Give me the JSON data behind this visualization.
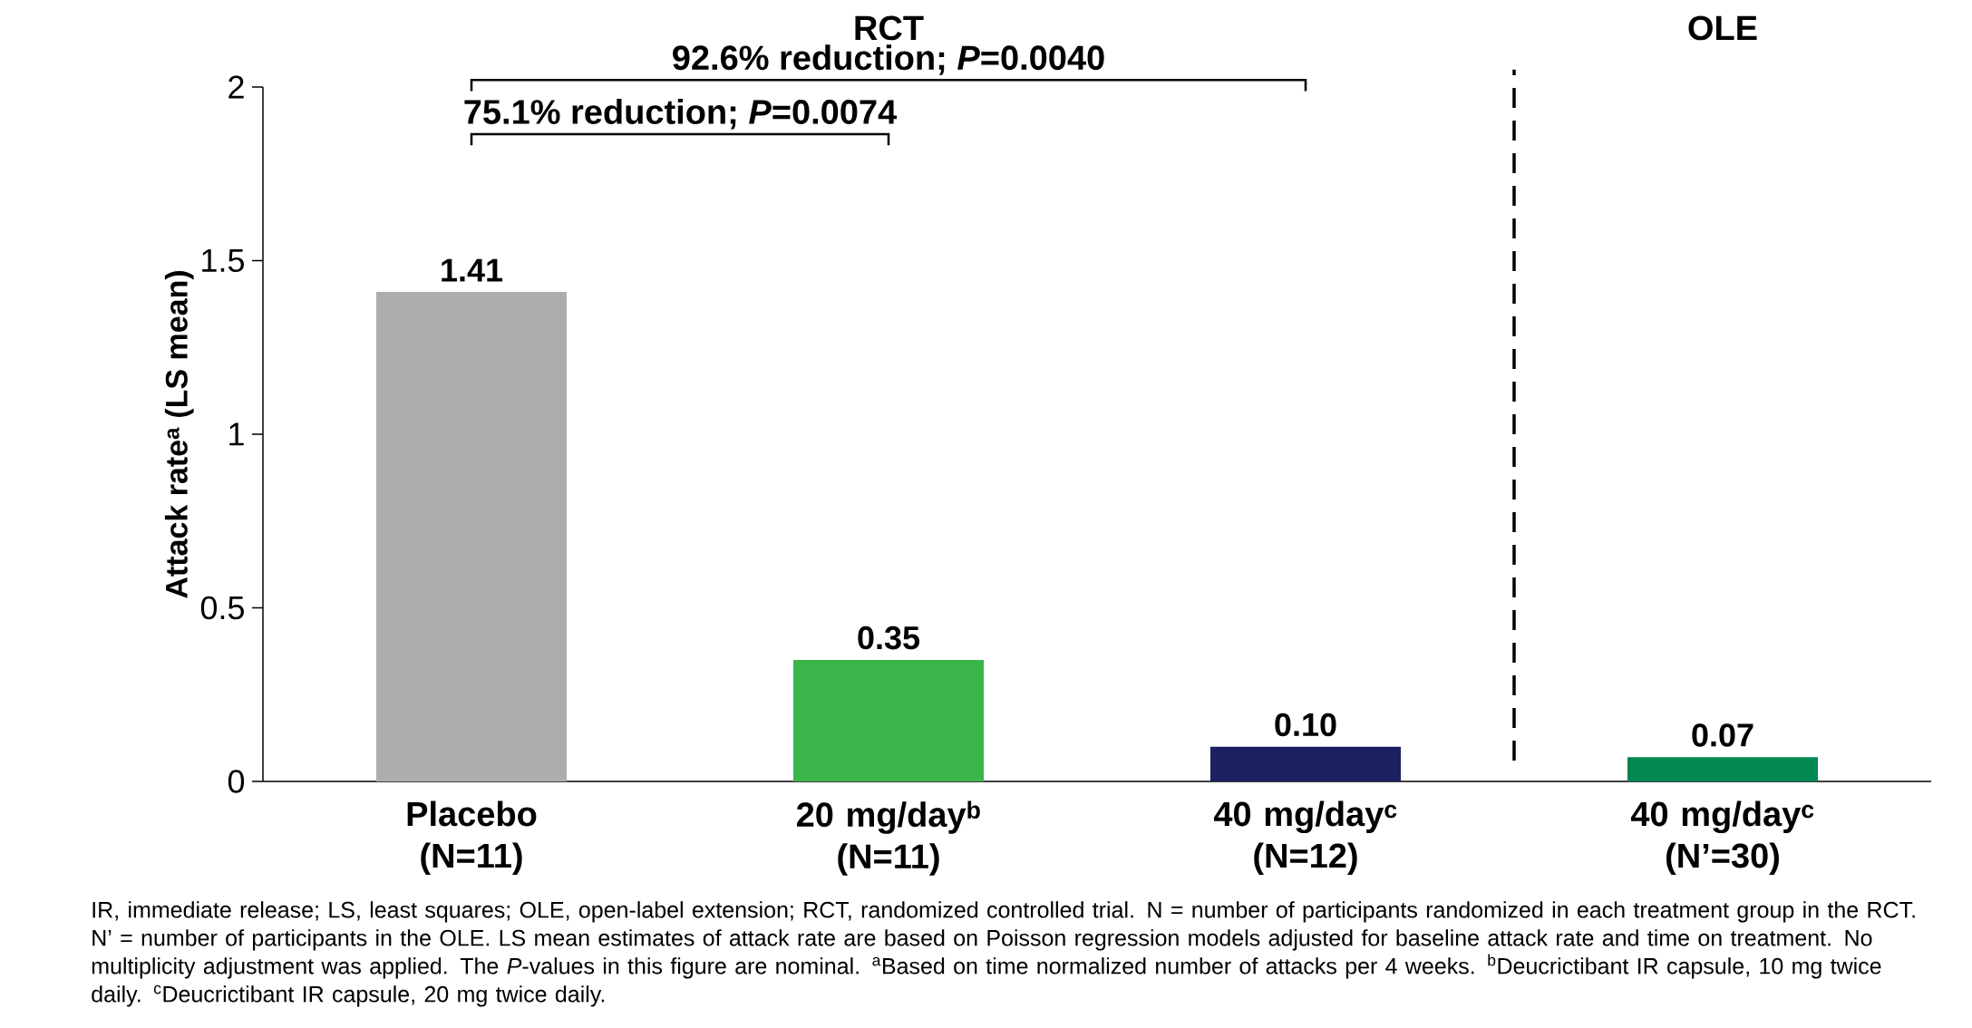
{
  "chart_data": {
    "type": "bar",
    "ylabel": "Attack rate$^{a}$ (LS mean)",
    "categories": [
      "Placebo (N=11)",
      "20 mg/day$^{b}$ (N=11)",
      "40 mg/day$^{c}$ (N=12)",
      "40 mg/day$^{c}$ (N’=30)"
    ],
    "values": [
      1.41,
      0.35,
      0.1,
      0.07
    ],
    "colors": [
      "#adadad",
      "#3ab54a",
      "#1b2060",
      "#008752"
    ],
    "value_labels": [
      "1.41",
      "0.35",
      "0.10",
      "0.07"
    ],
    "ylim": [
      0,
      2
    ],
    "yticks": [
      0,
      0.5,
      1,
      1.5,
      2
    ],
    "grid": false,
    "annotations": [
      "RCT",
      "OLE",
      "92.6% reduction; *P*=0.0040",
      "75.1% reduction; *P*=0.0074",
      "IR, immediate release; LS, least squares; OLE, open-label extension; RCT, randomized controlled trial. N = number of participants randomized in each treatment group in the RCT. N’ = number of participants in the OLE. LS mean estimates of attack rate are based on Poisson regression models adjusted for baseline attack rate and time on treatment. No multiplicity adjustment was applied. The *P*-values in this figure are nominal. $^{a}$Based on time normalized number of attacks per 4 weeks. $^{b}$Deucrictibant IR capsule, 10 mg twice daily. $^{c}$Deucrictibant IR capsule, 20 mg twice daily."
    ]
  }
}
